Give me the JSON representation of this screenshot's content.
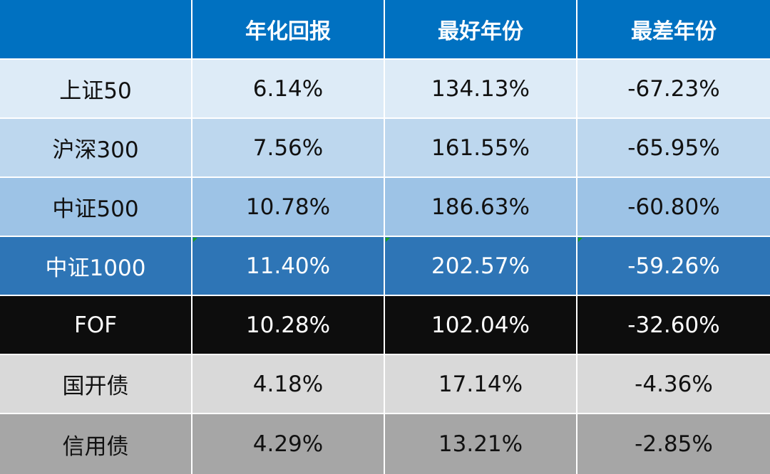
{
  "chart_data": {
    "type": "table",
    "columns": [
      "",
      "年化回报",
      "最好年份",
      "最差年份"
    ],
    "rows": [
      {
        "name": "上证50",
        "annualized_return": "6.14%",
        "best_year": "134.13%",
        "worst_year": "-67.23%"
      },
      {
        "name": "沪深300",
        "annualized_return": "7.56%",
        "best_year": "161.55%",
        "worst_year": "-65.95%"
      },
      {
        "name": "中证500",
        "annualized_return": "10.78%",
        "best_year": "186.63%",
        "worst_year": "-60.80%"
      },
      {
        "name": "中证1000",
        "annualized_return": "11.40%",
        "best_year": "202.57%",
        "worst_year": "-59.26%"
      },
      {
        "name": "FOF",
        "annualized_return": "10.28%",
        "best_year": "102.04%",
        "worst_year": "-32.60%"
      },
      {
        "name": "国开债",
        "annualized_return": "4.18%",
        "best_year": "17.14%",
        "worst_year": "-4.36%"
      },
      {
        "name": "信用债",
        "annualized_return": "4.29%",
        "best_year": "13.21%",
        "worst_year": "-2.85%"
      }
    ],
    "row_colors": [
      "#ddebf7",
      "#bdd7ee",
      "#9dc3e6",
      "#2e75b6",
      "#0d0d0d",
      "#d9d9d9",
      "#a6a6a6"
    ],
    "header_color": "#0071c1"
  }
}
